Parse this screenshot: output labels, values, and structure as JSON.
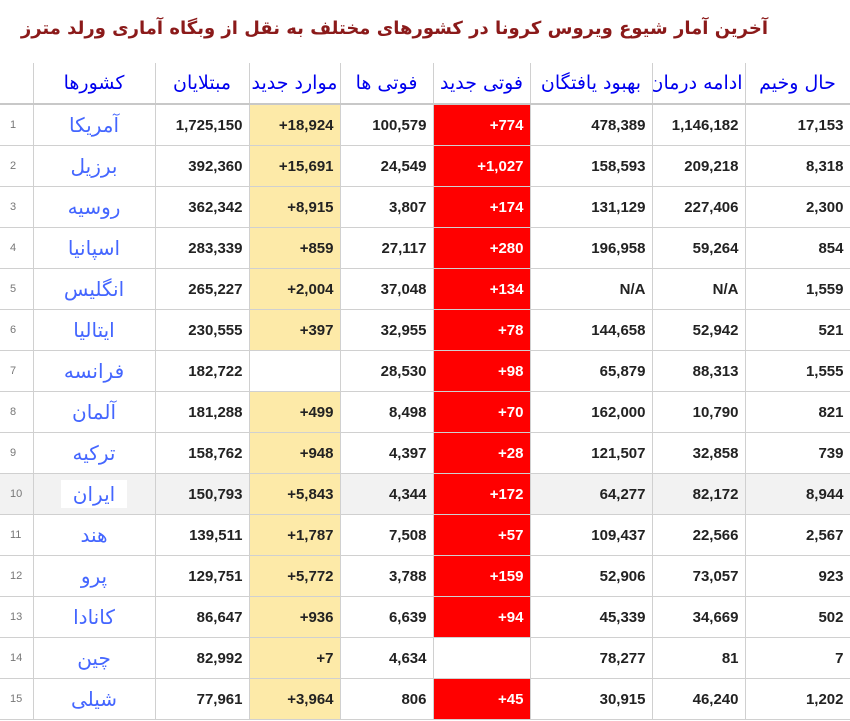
{
  "title": "آخرین آمار شیوع ویروس کرونا در کشورهای مختلف به نقل از وبگاه آماری ورلد مترز",
  "colors": {
    "title": "#8b1a1a",
    "header": "#0000ee",
    "country": "#4466ff",
    "new_cases_bg": "#fdeaa8",
    "new_deaths_bg": "#ff0000",
    "highlight_row": "#f2f2f2"
  },
  "headers": {
    "country": "کشورها",
    "total_cases": "مبتلایان",
    "new_cases": "موارد جدید",
    "total_deaths": "فوتی ها",
    "new_deaths": "فوتی جدید",
    "recovered": "بهبود یافتگان",
    "active": "ادامه درمان",
    "critical": "حال وخیم"
  },
  "rows": [
    {
      "n": "1",
      "country": "آمریکا",
      "cases": "1,725,150",
      "new_cases": "+18,924",
      "deaths": "100,579",
      "new_deaths": "+774",
      "recovered": "478,389",
      "active": "1,146,182",
      "critical": "17,153"
    },
    {
      "n": "2",
      "country": "برزیل",
      "cases": "392,360",
      "new_cases": "+15,691",
      "deaths": "24,549",
      "new_deaths": "+1,027",
      "recovered": "158,593",
      "active": "209,218",
      "critical": "8,318"
    },
    {
      "n": "3",
      "country": "روسیه",
      "cases": "362,342",
      "new_cases": "+8,915",
      "deaths": "3,807",
      "new_deaths": "+174",
      "recovered": "131,129",
      "active": "227,406",
      "critical": "2,300"
    },
    {
      "n": "4",
      "country": "اسپانیا",
      "cases": "283,339",
      "new_cases": "+859",
      "deaths": "27,117",
      "new_deaths": "+280",
      "recovered": "196,958",
      "active": "59,264",
      "critical": "854"
    },
    {
      "n": "5",
      "country": "انگلیس",
      "cases": "265,227",
      "new_cases": "+2,004",
      "deaths": "37,048",
      "new_deaths": "+134",
      "recovered": "N/A",
      "active": "N/A",
      "critical": "1,559"
    },
    {
      "n": "6",
      "country": "ایتالیا",
      "cases": "230,555",
      "new_cases": "+397",
      "deaths": "32,955",
      "new_deaths": "+78",
      "recovered": "144,658",
      "active": "52,942",
      "critical": "521"
    },
    {
      "n": "7",
      "country": "فرانسه",
      "cases": "182,722",
      "new_cases": "",
      "deaths": "28,530",
      "new_deaths": "+98",
      "recovered": "65,879",
      "active": "88,313",
      "critical": "1,555"
    },
    {
      "n": "8",
      "country": "آلمان",
      "cases": "181,288",
      "new_cases": "+499",
      "deaths": "8,498",
      "new_deaths": "+70",
      "recovered": "162,000",
      "active": "10,790",
      "critical": "821"
    },
    {
      "n": "9",
      "country": "ترکیه",
      "cases": "158,762",
      "new_cases": "+948",
      "deaths": "4,397",
      "new_deaths": "+28",
      "recovered": "121,507",
      "active": "32,858",
      "critical": "739"
    },
    {
      "n": "10",
      "country": "ایران",
      "cases": "150,793",
      "new_cases": "+5,843",
      "deaths": "4,344",
      "new_deaths": "+172",
      "recovered": "64,277",
      "active": "82,172",
      "critical": "8,944",
      "highlight": true
    },
    {
      "n": "11",
      "country": "هند",
      "cases": "139,511",
      "new_cases": "+1,787",
      "deaths": "7,508",
      "new_deaths": "+57",
      "recovered": "109,437",
      "active": "22,566",
      "critical": "2,567"
    },
    {
      "n": "12",
      "country": "پرو",
      "cases": "129,751",
      "new_cases": "+5,772",
      "deaths": "3,788",
      "new_deaths": "+159",
      "recovered": "52,906",
      "active": "73,057",
      "critical": "923"
    },
    {
      "n": "13",
      "country": "کانادا",
      "cases": "86,647",
      "new_cases": "+936",
      "deaths": "6,639",
      "new_deaths": "+94",
      "recovered": "45,339",
      "active": "34,669",
      "critical": "502"
    },
    {
      "n": "14",
      "country": "چین",
      "cases": "82,992",
      "new_cases": "+7",
      "deaths": "4,634",
      "new_deaths": "",
      "recovered": "78,277",
      "active": "81",
      "critical": "7"
    },
    {
      "n": "15",
      "country": "شیلی",
      "cases": "77,961",
      "new_cases": "+3,964",
      "deaths": "806",
      "new_deaths": "+45",
      "recovered": "30,915",
      "active": "46,240",
      "critical": "1,202"
    }
  ]
}
